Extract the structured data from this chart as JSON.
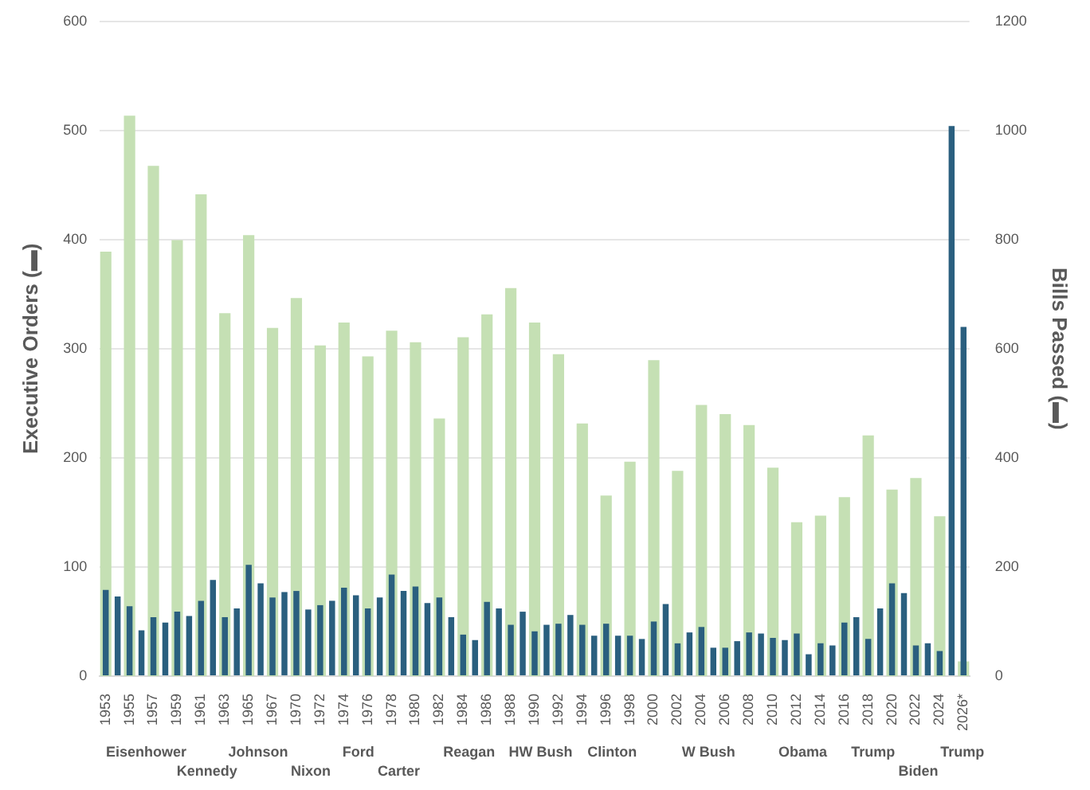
{
  "chart_data": {
    "type": "bar",
    "ylabel": "Executive Orders (▬)",
    "y2label": "Bills Passed (▬)",
    "categories": [
      "1953",
      null,
      "1955",
      null,
      "1957",
      null,
      "1959",
      null,
      "1961",
      null,
      "1963",
      null,
      "1965",
      null,
      "1967",
      null,
      "1970",
      null,
      "1972",
      null,
      "1974",
      null,
      "1976",
      null,
      "1978",
      null,
      "1980",
      null,
      "1982",
      null,
      "1984",
      null,
      "1986",
      null,
      "1988",
      null,
      "1990",
      null,
      "1992",
      null,
      "1994",
      null,
      "1996",
      null,
      "1998",
      null,
      "2000",
      null,
      "2002",
      null,
      "2004",
      null,
      "2006",
      null,
      "2008",
      null,
      "2010",
      null,
      "2012",
      null,
      "2014",
      null,
      "2016",
      null,
      "2018",
      null,
      "2020",
      null,
      "2022",
      null,
      "2024",
      null,
      "2026*"
    ],
    "series": [
      {
        "color": "#c5e0b4",
        "axis": "y2",
        "values": [
          778,
          null,
          1027,
          null,
          935,
          null,
          799,
          null,
          883,
          null,
          665,
          null,
          808,
          null,
          638,
          null,
          693,
          null,
          606,
          null,
          648,
          null,
          586,
          null,
          633,
          null,
          612,
          null,
          472,
          null,
          621,
          null,
          663,
          null,
          711,
          null,
          648,
          null,
          590,
          null,
          463,
          null,
          331,
          null,
          393,
          null,
          579,
          null,
          376,
          null,
          497,
          null,
          480,
          null,
          460,
          null,
          382,
          null,
          282,
          null,
          294,
          null,
          328,
          null,
          441,
          null,
          342,
          null,
          363,
          null,
          293,
          null,
          27
        ]
      },
      {
        "color": "#2a5f7f",
        "values": [
          79,
          73,
          64,
          42,
          54,
          49,
          59,
          55,
          69,
          88,
          54,
          62,
          102,
          85,
          72,
          77,
          78,
          61,
          65,
          69,
          81,
          74,
          62,
          72,
          93,
          78,
          82,
          67,
          72,
          54,
          38,
          33,
          68,
          62,
          47,
          59,
          41,
          47,
          48,
          56,
          47,
          37,
          48,
          37,
          37,
          34,
          50,
          66,
          30,
          40,
          45,
          26,
          26,
          32,
          40,
          39,
          35,
          33,
          39,
          20,
          30,
          28,
          49,
          54,
          34,
          62,
          85,
          76,
          28,
          30,
          23,
          504,
          320
        ]
      }
    ],
    "ylim": [
      0,
      600
    ],
    "yticks": [
      0,
      100,
      200,
      300,
      400,
      500,
      600
    ],
    "y2lim": [
      0,
      1200
    ],
    "y2ticks": [
      0,
      200,
      400,
      600,
      800,
      1000,
      1200
    ],
    "grid": "y",
    "legend": false,
    "annotations": [
      "Eisenhower",
      "Kennedy",
      "Johnson",
      "Nixon",
      "Ford",
      "Carter",
      "Reagan",
      "HW Bush",
      "Clinton",
      "W Bush",
      "Obama",
      "Trump",
      "Biden",
      "Trump"
    ]
  }
}
